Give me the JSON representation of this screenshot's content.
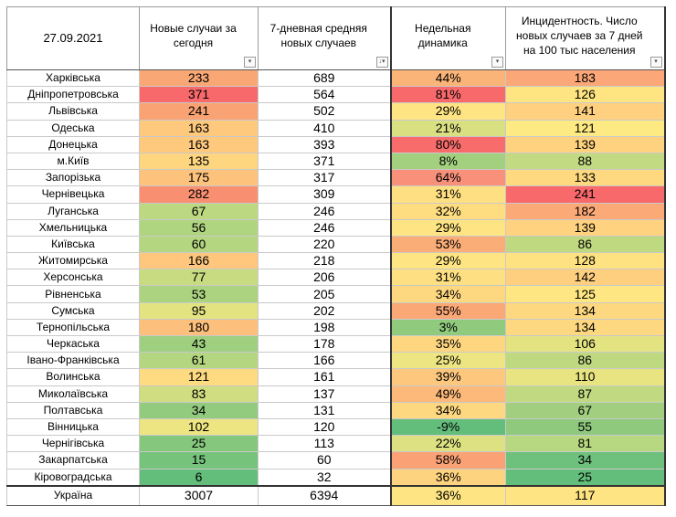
{
  "header": {
    "date": "27.09.2021",
    "new_cases_today": "Новые случаи за сегодня",
    "avg7": "7-дневная средняя новых случаев",
    "weekly_dynamics": "Недельная динамика",
    "incidence": "Инцидентность. Число новых случаев за 7 дней на 100 тыс населения",
    "filter_icon": "▾",
    "sort_icon": "↓▾"
  },
  "rows": [
    {
      "region": "Харківська",
      "today": "233",
      "avg7": "689",
      "weekly": "44%",
      "incidence": "183",
      "c_today": "#f9a775",
      "c_weekly": "#fbb478",
      "c_inc": "#fba777"
    },
    {
      "region": "Дніпропетровська",
      "today": "371",
      "avg7": "564",
      "weekly": "81%",
      "incidence": "126",
      "c_today": "#f8696b",
      "c_weekly": "#f8696b",
      "c_inc": "#fee582"
    },
    {
      "region": "Львівська",
      "today": "241",
      "avg7": "502",
      "weekly": "29%",
      "incidence": "141",
      "c_today": "#f9a374",
      "c_weekly": "#fee482",
      "c_inc": "#fed07f"
    },
    {
      "region": "Одеська",
      "today": "163",
      "avg7": "410",
      "weekly": "21%",
      "incidence": "121",
      "c_today": "#fec97d",
      "c_weekly": "#d8e082",
      "c_inc": "#feea83"
    },
    {
      "region": "Донецька",
      "today": "163",
      "avg7": "393",
      "weekly": "80%",
      "incidence": "139",
      "c_today": "#fec97d",
      "c_weekly": "#f86d6c",
      "c_inc": "#fed27f"
    },
    {
      "region": "м.Київ",
      "today": "135",
      "avg7": "371",
      "weekly": "8%",
      "incidence": "88",
      "c_today": "#fed680",
      "c_weekly": "#a2d07f",
      "c_inc": "#c2da81"
    },
    {
      "region": "Запорізька",
      "today": "175",
      "avg7": "317",
      "weekly": "64%",
      "incidence": "133",
      "c_today": "#fdc37c",
      "c_weekly": "#f9907a",
      "c_inc": "#fed980"
    },
    {
      "region": "Чернівецька",
      "today": "282",
      "avg7": "309",
      "weekly": "31%",
      "incidence": "241",
      "c_today": "#f98f71",
      "c_weekly": "#fedf81",
      "c_inc": "#f8696b"
    },
    {
      "region": "Луганська",
      "today": "67",
      "avg7": "246",
      "weekly": "32%",
      "incidence": "182",
      "c_today": "#bcd881",
      "c_weekly": "#fedd81",
      "c_inc": "#fba977"
    },
    {
      "region": "Хмельницька",
      "today": "56",
      "avg7": "246",
      "weekly": "29%",
      "incidence": "139",
      "c_today": "#b0d580",
      "c_weekly": "#fee482",
      "c_inc": "#fed27f"
    },
    {
      "region": "Київська",
      "today": "60",
      "avg7": "220",
      "weekly": "53%",
      "incidence": "86",
      "c_today": "#b4d680",
      "c_weekly": "#fbad78",
      "c_inc": "#bfd981"
    },
    {
      "region": "Житомирська",
      "today": "166",
      "avg7": "218",
      "weekly": "29%",
      "incidence": "128",
      "c_today": "#fec77d",
      "c_weekly": "#fee482",
      "c_inc": "#fee282"
    },
    {
      "region": "Херсонська",
      "today": "77",
      "avg7": "206",
      "weekly": "31%",
      "incidence": "142",
      "c_today": "#c8db81",
      "c_weekly": "#fedf81",
      "c_inc": "#fecf7f"
    },
    {
      "region": "Рівненська",
      "today": "53",
      "avg7": "205",
      "weekly": "34%",
      "incidence": "125",
      "c_today": "#acd480",
      "c_weekly": "#fed880",
      "c_inc": "#fee682"
    },
    {
      "region": "Сумська",
      "today": "95",
      "avg7": "202",
      "weekly": "55%",
      "incidence": "134",
      "c_today": "#e3e382",
      "c_weekly": "#fba877",
      "c_inc": "#fed880"
    },
    {
      "region": "Тернопільська",
      "today": "180",
      "avg7": "198",
      "weekly": "3%",
      "incidence": "134",
      "c_today": "#fdc07c",
      "c_weekly": "#90ca7d",
      "c_inc": "#fed880"
    },
    {
      "region": "Черкаська",
      "today": "43",
      "avg7": "178",
      "weekly": "35%",
      "incidence": "106",
      "c_today": "#9fd07f",
      "c_weekly": "#fed680",
      "c_inc": "#e3e382"
    },
    {
      "region": "Івано-Франківська",
      "today": "61",
      "avg7": "166",
      "weekly": "25%",
      "incidence": "86",
      "c_today": "#b5d680",
      "c_weekly": "#ede582",
      "c_inc": "#bfd981"
    },
    {
      "region": "Волинська",
      "today": "121",
      "avg7": "161",
      "weekly": "39%",
      "incidence": "110",
      "c_today": "#feda80",
      "c_weekly": "#fdc77d",
      "c_inc": "#e9e482"
    },
    {
      "region": "Миколаївська",
      "today": "83",
      "avg7": "137",
      "weekly": "49%",
      "incidence": "87",
      "c_today": "#d0dd81",
      "c_weekly": "#fcb979",
      "c_inc": "#c1da81"
    },
    {
      "region": "Полтавська",
      "today": "34",
      "avg7": "131",
      "weekly": "34%",
      "incidence": "67",
      "c_today": "#92cb7e",
      "c_weekly": "#fed880",
      "c_inc": "#a1cf7f"
    },
    {
      "region": "Вінницька",
      "today": "102",
      "avg7": "120",
      "weekly": "-9%",
      "incidence": "55",
      "c_today": "#ede582",
      "c_weekly": "#63be7b",
      "c_inc": "#8ec97e"
    },
    {
      "region": "Чернігівська",
      "today": "25",
      "avg7": "113",
      "weekly": "22%",
      "incidence": "81",
      "c_today": "#85c87d",
      "c_weekly": "#dde182",
      "c_inc": "#b7d780"
    },
    {
      "region": "Закарпатська",
      "today": "15",
      "avg7": "60",
      "weekly": "58%",
      "incidence": "34",
      "c_today": "#76c37c",
      "c_weekly": "#faa276",
      "c_inc": "#6ec17c"
    },
    {
      "region": "Кіровоградська",
      "today": "6",
      "avg7": "32",
      "weekly": "36%",
      "incidence": "25",
      "c_today": "#63be7b",
      "c_weekly": "#fed380",
      "c_inc": "#63be7b"
    }
  ],
  "total": {
    "region": "Україна",
    "today": "3007",
    "avg7": "6394",
    "weekly": "36%",
    "incidence": "117",
    "c_weekly": "#fee482",
    "c_inc": "#fee482"
  }
}
